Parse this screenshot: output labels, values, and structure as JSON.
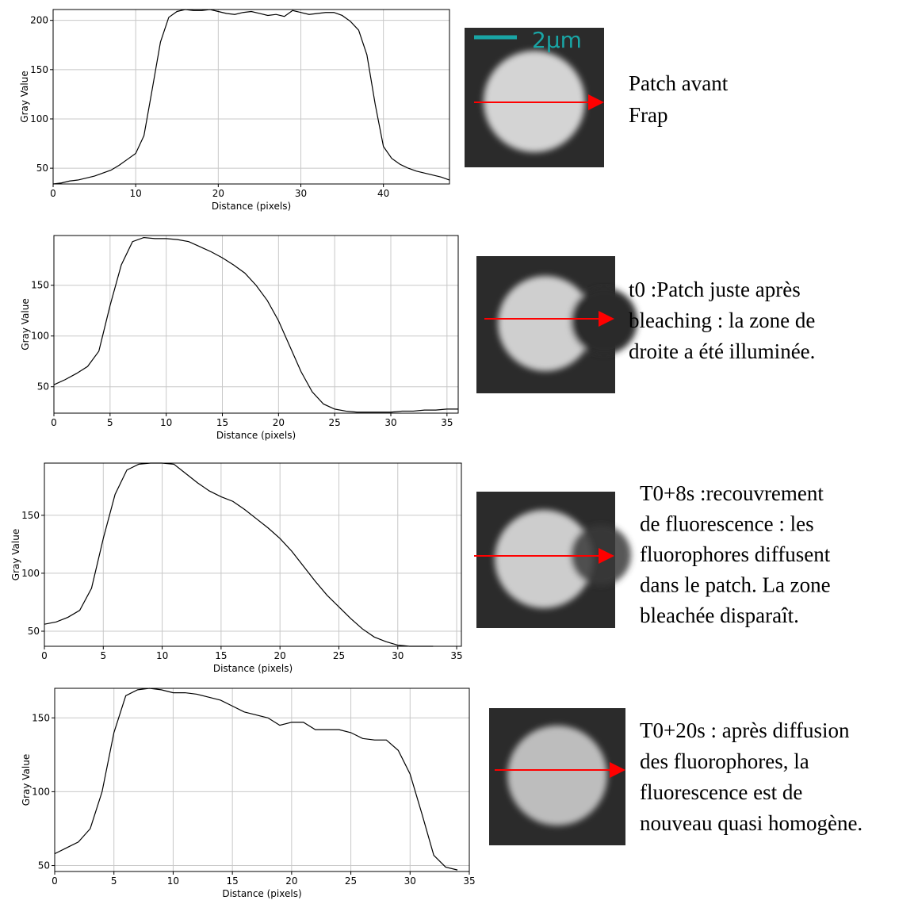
{
  "chart_data": [
    {
      "type": "line",
      "x_label": "Distance (pixels)",
      "y_label": "Gray Value",
      "grid": true,
      "x": [
        0,
        1,
        2,
        3,
        4,
        5,
        6,
        7,
        8,
        9,
        10,
        11,
        12,
        13,
        14,
        15,
        16,
        17,
        18,
        19,
        20,
        21,
        22,
        23,
        24,
        25,
        26,
        27,
        28,
        29,
        30,
        31,
        32,
        33,
        34,
        35,
        36,
        37,
        38,
        39,
        40,
        41,
        42,
        43,
        44,
        45,
        46,
        47,
        48
      ],
      "series": [
        {
          "color": "#000000",
          "values": [
            34,
            35,
            37,
            38,
            40,
            42,
            45,
            48,
            53,
            59,
            65,
            83,
            130,
            178,
            203,
            209,
            211,
            210,
            210,
            211,
            209,
            207,
            206,
            208,
            209,
            207,
            205,
            206,
            204,
            210,
            208,
            206,
            207,
            208,
            208,
            205,
            199,
            190,
            165,
            115,
            72,
            60,
            54,
            50,
            47,
            45,
            43,
            41,
            38
          ]
        }
      ],
      "xlim": [
        0,
        48
      ],
      "ylim": [
        34,
        211
      ],
      "xticks": [
        0,
        10,
        20,
        30,
        40
      ],
      "yticks": [
        50,
        100,
        150,
        200
      ]
    },
    {
      "type": "line",
      "x_label": "Distance (pixels)",
      "y_label": "Gray Value",
      "grid": true,
      "x": [
        0,
        1,
        2,
        3,
        4,
        5,
        6,
        7,
        8,
        9,
        10,
        11,
        12,
        13,
        14,
        15,
        16,
        17,
        18,
        19,
        20,
        21,
        22,
        23,
        24,
        25,
        26,
        27,
        28,
        29,
        30,
        31,
        32,
        33,
        34,
        35,
        36
      ],
      "series": [
        {
          "color": "#000000",
          "values": [
            52,
            57,
            63,
            70,
            85,
            130,
            170,
            193,
            197,
            196,
            196,
            195,
            193,
            188,
            183,
            177,
            170,
            162,
            150,
            135,
            115,
            90,
            65,
            45,
            33,
            28,
            26,
            25,
            25,
            25,
            25,
            26,
            26,
            27,
            27,
            28,
            28
          ]
        }
      ],
      "xlim": [
        0,
        36
      ],
      "ylim": [
        24,
        199
      ],
      "xticks": [
        0,
        5,
        10,
        15,
        20,
        25,
        30,
        35
      ],
      "yticks": [
        50,
        100,
        150
      ]
    },
    {
      "type": "line",
      "x_label": "Distance (pixels)",
      "y_label": "Gray Value",
      "grid": true,
      "x": [
        0,
        1,
        2,
        3,
        4,
        5,
        6,
        7,
        8,
        9,
        10,
        11,
        12,
        13,
        14,
        15,
        16,
        17,
        18,
        19,
        20,
        21,
        22,
        23,
        24,
        25,
        26,
        27,
        28,
        29,
        30,
        31,
        32,
        33
      ],
      "series": [
        {
          "color": "#000000",
          "values": [
            56,
            58,
            62,
            68,
            87,
            130,
            168,
            189,
            194,
            195,
            195,
            194,
            186,
            178,
            171,
            166,
            162,
            155,
            147,
            139,
            130,
            119,
            106,
            93,
            81,
            71,
            61,
            52,
            45,
            41,
            38,
            37,
            37,
            37
          ]
        }
      ],
      "xlim": [
        0,
        35.4
      ],
      "ylim": [
        37,
        195
      ],
      "xticks": [
        0,
        5,
        10,
        15,
        20,
        25,
        30,
        35
      ],
      "yticks": [
        50,
        100,
        150
      ]
    },
    {
      "type": "line",
      "x_label": "Distance (pixels)",
      "y_label": "Gray Value",
      "grid": true,
      "x": [
        0,
        1,
        2,
        3,
        4,
        5,
        6,
        7,
        8,
        9,
        10,
        11,
        12,
        13,
        14,
        15,
        16,
        17,
        18,
        19,
        20,
        21,
        22,
        23,
        24,
        25,
        26,
        27,
        28,
        29,
        30,
        31,
        32,
        33,
        34
      ],
      "series": [
        {
          "color": "#000000",
          "values": [
            58,
            62,
            66,
            75,
            100,
            140,
            165,
            169,
            170,
            169,
            167,
            167,
            166,
            164,
            162,
            158,
            154,
            152,
            150,
            145,
            147,
            147,
            142,
            142,
            142,
            140,
            136,
            135,
            135,
            128,
            112,
            85,
            57,
            49,
            47
          ]
        }
      ],
      "xlim": [
        0,
        35
      ],
      "ylim": [
        46,
        170
      ],
      "xticks": [
        0,
        5,
        10,
        15,
        20,
        25,
        30,
        35
      ],
      "yticks": [
        50,
        100,
        150
      ]
    }
  ],
  "scale_bar": "2µm",
  "panels": [
    {
      "caption": [
        "Patch avant",
        "Frap"
      ]
    },
    {
      "caption": [
        "t0 :Patch juste après",
        "bleaching : la zone de",
        "droite a été illuminée."
      ]
    },
    {
      "caption": [
        "T0+8s :recouvrement",
        "de fluorescence : les",
        "fluorophores diffusent",
        "dans le patch. La zone",
        "bleachée disparaît."
      ]
    },
    {
      "caption": [
        "T0+20s : après diffusion",
        "des fluorophores, la",
        "fluorescence est de",
        "nouveau quasi homogène."
      ]
    }
  ]
}
